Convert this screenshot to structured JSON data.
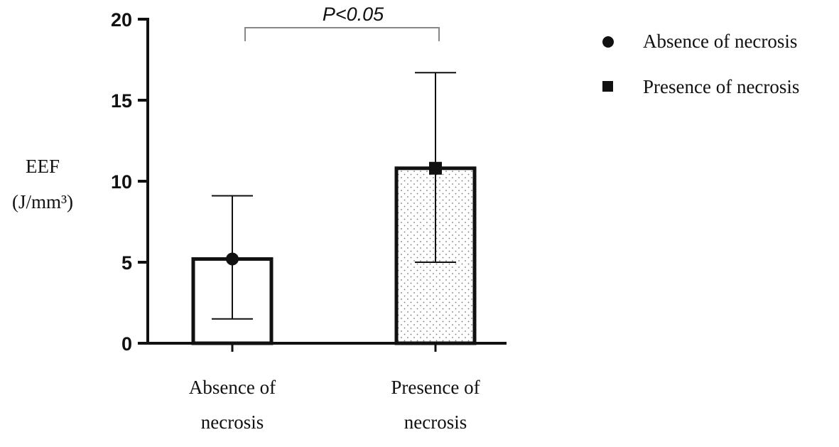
{
  "chart_data": {
    "type": "bar",
    "ylabel": [
      "EEF",
      "(J/mm³)"
    ],
    "ylim": [
      0,
      20
    ],
    "yticks": [
      0,
      5,
      10,
      15,
      20
    ],
    "categories": [
      [
        "Absence of",
        "necrosis"
      ],
      [
        "Presence of",
        "necrosis"
      ]
    ],
    "values": [
      5.2,
      10.8
    ],
    "error_low": [
      1.5,
      5.0
    ],
    "error_high": [
      9.1,
      16.7
    ],
    "legend": [
      {
        "label": "Absence of necrosis",
        "marker": "circle"
      },
      {
        "label": "Presence of necrosis",
        "marker": "square"
      }
    ],
    "legend_position": "top-right",
    "bar_fills": [
      "white",
      "dotted"
    ],
    "annotation": "P<0.05",
    "grid": false
  }
}
